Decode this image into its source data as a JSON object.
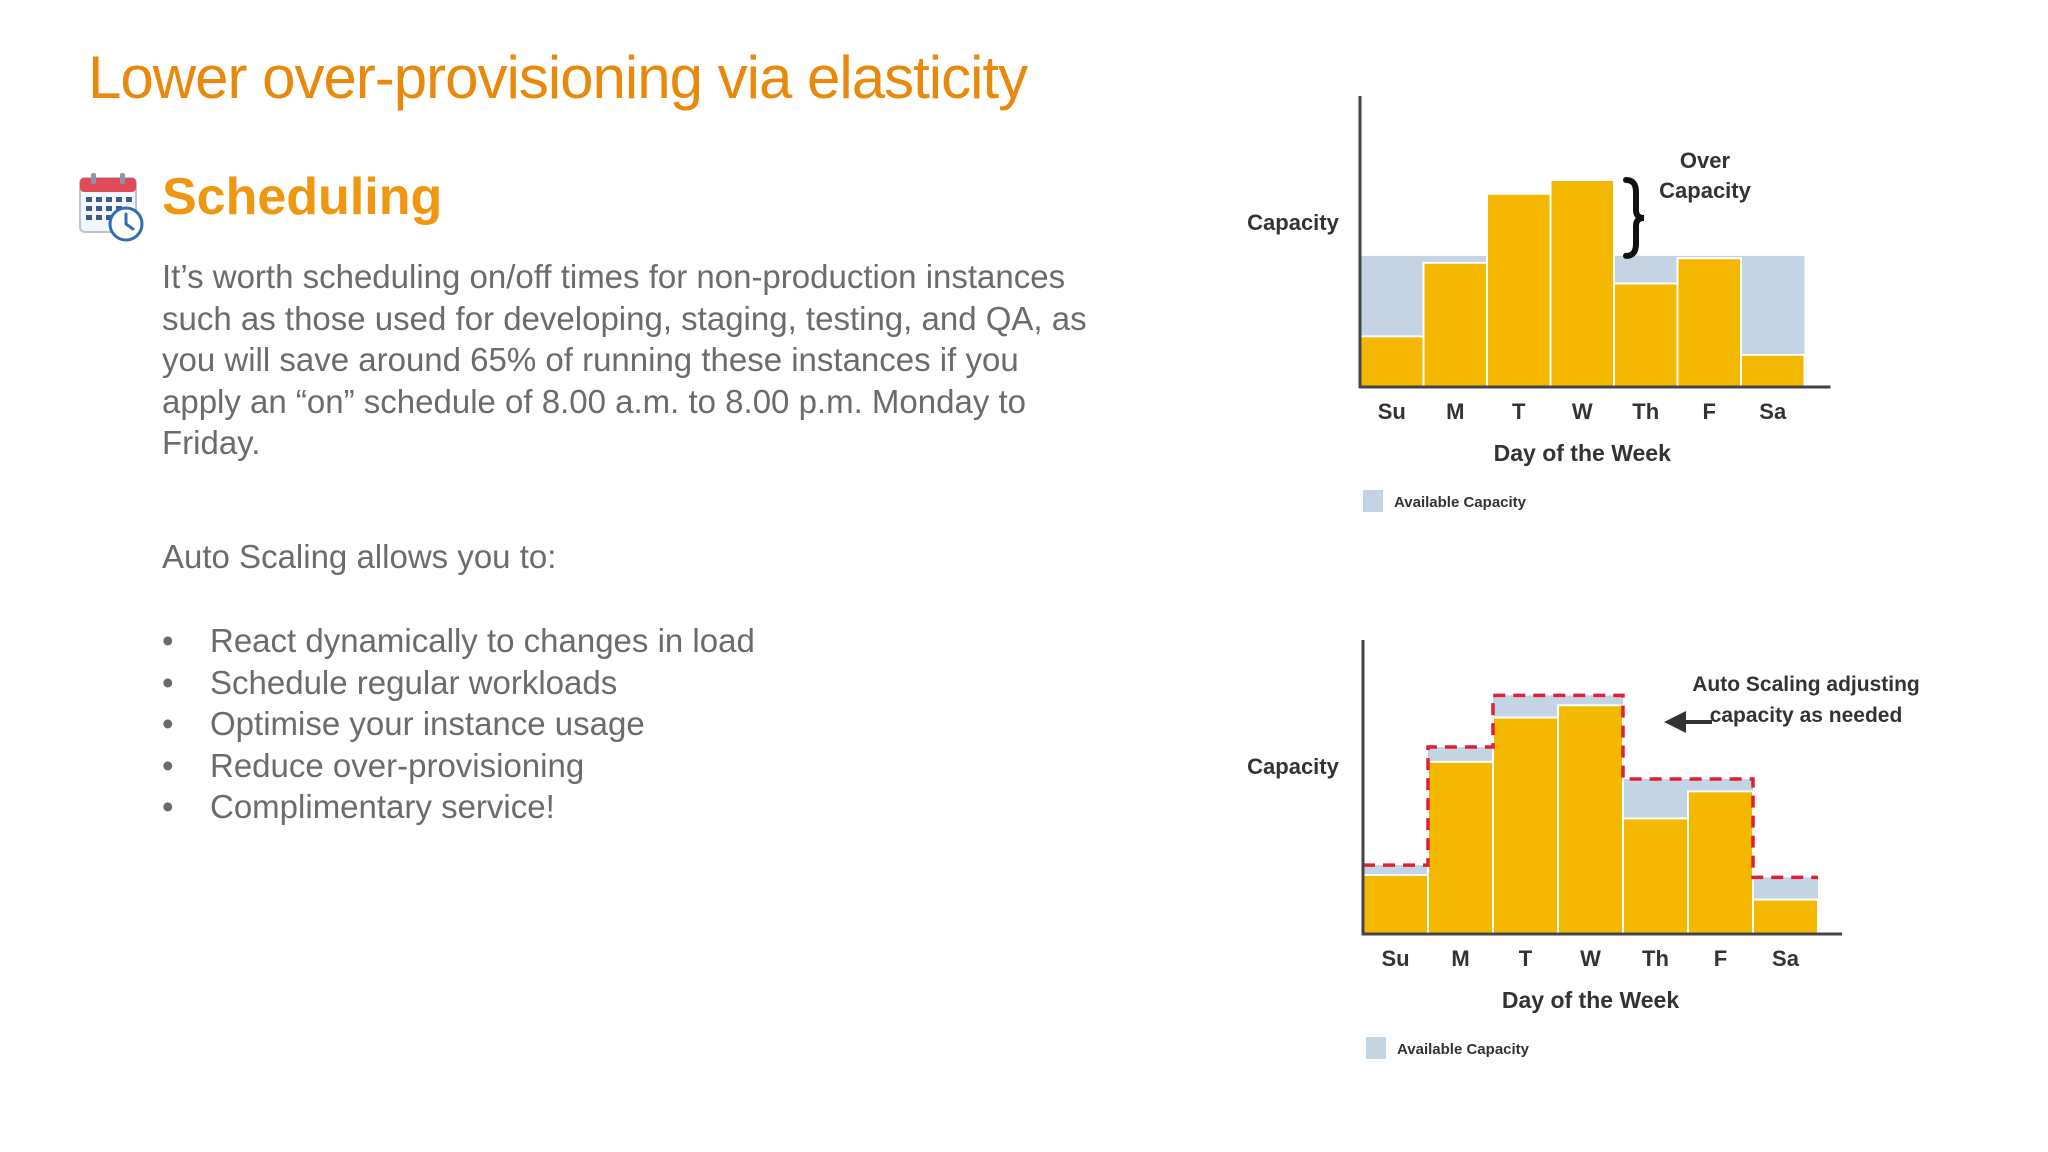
{
  "slide": {
    "title": "Lower over-provisioning via elasticity"
  },
  "section": {
    "icon": "calendar-clock-icon",
    "heading": "Scheduling",
    "body": "It’s worth scheduling on/off times for non-production instances such as those used for developing, staging, testing, and QA, as you will save around 65% of running these instances if you apply an “on” schedule of 8.00 a.m. to 8.00 p.m. Monday to Friday.",
    "lead": "Auto Scaling allows you to:",
    "bullets": [
      "React dynamically to changes in load",
      "Schedule regular workloads",
      "Optimise your instance usage",
      "Reduce over-provisioning",
      "Complimentary service!"
    ]
  },
  "colors": {
    "title": "#e8890c",
    "heading": "#f0960f",
    "bar": "#f5b800",
    "available_capacity": "#c5d4e4",
    "auto_scaling_line": "#e02030"
  },
  "chart_data": [
    {
      "type": "bar",
      "categories": [
        "Su",
        "M",
        "T",
        "W",
        "Th",
        "F",
        "Sa"
      ],
      "values": [
        22,
        54,
        84,
        90,
        45,
        56,
        14
      ],
      "available_capacity": [
        57,
        57,
        57,
        57,
        57,
        57,
        57
      ],
      "ylabel": "Capacity",
      "xlabel": "Day of the Week",
      "ylim": [
        0,
        100
      ],
      "annotation": "Over Capacity",
      "legend": {
        "label": "Available Capacity",
        "position": "bottom-left"
      },
      "grid": false
    },
    {
      "type": "bar",
      "categories": [
        "Su",
        "M",
        "T",
        "W",
        "Th",
        "F",
        "Sa"
      ],
      "values": [
        24,
        70,
        88,
        93,
        47,
        58,
        14
      ],
      "available_capacity": [
        28,
        76,
        97,
        97,
        63,
        63,
        23
      ],
      "ylabel": "Capacity",
      "xlabel": "Day of the Week",
      "ylim": [
        0,
        100
      ],
      "annotation": "Auto Scaling adjusting capacity as needed",
      "legend": {
        "label": "Available Capacity",
        "position": "bottom-left"
      },
      "grid": false
    }
  ]
}
